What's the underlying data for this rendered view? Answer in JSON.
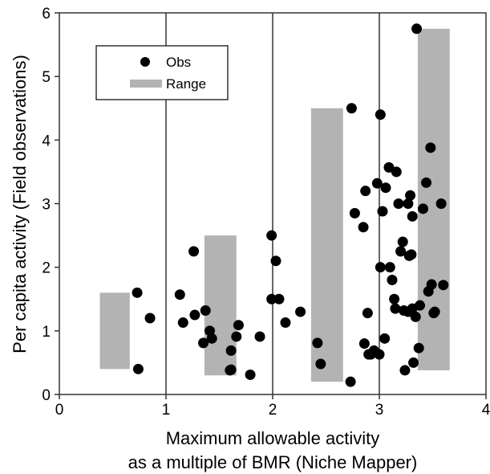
{
  "chart_data": {
    "type": "scatter",
    "title": "",
    "xlabel_line1": "Maximum allowable activity",
    "xlabel_line2": "as a multiple of BMR (Niche Mapper)",
    "ylabel": "Per capita activity (Field observations)",
    "xlim": [
      0,
      4
    ],
    "ylim": [
      0,
      6
    ],
    "xticks": [
      "0",
      "1",
      "2",
      "3",
      "4"
    ],
    "yticks": [
      "0",
      "1",
      "2",
      "3",
      "4",
      "5",
      "6"
    ],
    "vlines": [
      1,
      2,
      3
    ],
    "grid": false,
    "legend_position": "top-left",
    "colors": {
      "points": "#000000",
      "range": "#b3b3b3",
      "lines": "#333333"
    },
    "series": [
      {
        "name": "Obs",
        "kind": "points",
        "points": [
          [
            0.73,
            1.6
          ],
          [
            0.74,
            0.4
          ],
          [
            0.85,
            1.2
          ],
          [
            1.13,
            1.57
          ],
          [
            1.16,
            1.13
          ],
          [
            1.26,
            2.25
          ],
          [
            1.27,
            1.25
          ],
          [
            1.35,
            0.81
          ],
          [
            1.37,
            1.32
          ],
          [
            1.41,
            1.0
          ],
          [
            1.43,
            0.88
          ],
          [
            1.6,
            0.38
          ],
          [
            1.61,
            0.39
          ],
          [
            1.61,
            0.69
          ],
          [
            1.66,
            0.91
          ],
          [
            1.68,
            1.09
          ],
          [
            1.79,
            0.31
          ],
          [
            1.88,
            0.91
          ],
          [
            1.99,
            2.5
          ],
          [
            1.99,
            1.5
          ],
          [
            2.03,
            2.1
          ],
          [
            2.06,
            1.5
          ],
          [
            2.12,
            1.13
          ],
          [
            2.26,
            1.3
          ],
          [
            2.42,
            0.81
          ],
          [
            2.45,
            0.48
          ],
          [
            2.73,
            0.2
          ],
          [
            2.74,
            4.5
          ],
          [
            2.77,
            2.85
          ],
          [
            2.85,
            2.63
          ],
          [
            2.86,
            0.8
          ],
          [
            2.87,
            3.2
          ],
          [
            2.89,
            1.28
          ],
          [
            2.9,
            0.63
          ],
          [
            2.92,
            0.63
          ],
          [
            2.95,
            0.69
          ],
          [
            2.98,
            3.32
          ],
          [
            3.0,
            0.63
          ],
          [
            3.01,
            4.4
          ],
          [
            3.01,
            2.0
          ],
          [
            3.03,
            2.88
          ],
          [
            3.05,
            0.88
          ],
          [
            3.06,
            3.25
          ],
          [
            3.09,
            3.57
          ],
          [
            3.1,
            2.0
          ],
          [
            3.12,
            1.8
          ],
          [
            3.14,
            1.5
          ],
          [
            3.15,
            1.35
          ],
          [
            3.16,
            3.5
          ],
          [
            3.18,
            3.0
          ],
          [
            3.2,
            2.25
          ],
          [
            3.22,
            2.4
          ],
          [
            3.23,
            1.32
          ],
          [
            3.24,
            0.38
          ],
          [
            3.27,
            3.0
          ],
          [
            3.27,
            1.3
          ],
          [
            3.28,
            2.18
          ],
          [
            3.29,
            3.13
          ],
          [
            3.3,
            2.2
          ],
          [
            3.31,
            2.8
          ],
          [
            3.31,
            1.35
          ],
          [
            3.32,
            0.5
          ],
          [
            3.34,
            1.22
          ],
          [
            3.35,
            5.75
          ],
          [
            3.37,
            0.73
          ],
          [
            3.38,
            1.4
          ],
          [
            3.41,
            2.92
          ],
          [
            3.44,
            3.33
          ],
          [
            3.46,
            1.62
          ],
          [
            3.48,
            3.88
          ],
          [
            3.49,
            1.73
          ],
          [
            3.51,
            1.28
          ],
          [
            3.52,
            1.3
          ],
          [
            3.58,
            3.0
          ],
          [
            3.6,
            1.72
          ]
        ]
      },
      {
        "name": "Range",
        "kind": "range_bars",
        "bars": [
          {
            "x_from": 0.38,
            "x_to": 0.66,
            "low": 0.4,
            "high": 1.6
          },
          {
            "x_from": 1.36,
            "x_to": 1.66,
            "low": 0.3,
            "high": 2.5
          },
          {
            "x_from": 2.36,
            "x_to": 2.66,
            "low": 0.2,
            "high": 4.5
          },
          {
            "x_from": 3.36,
            "x_to": 3.66,
            "low": 0.38,
            "high": 5.75
          }
        ]
      }
    ]
  }
}
